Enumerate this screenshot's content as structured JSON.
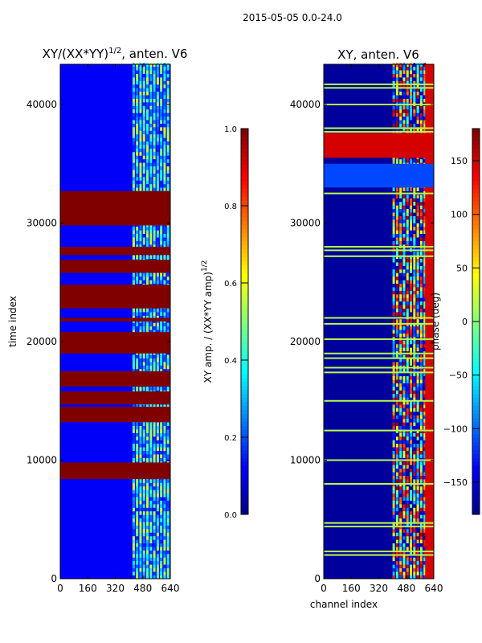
{
  "suptitle": "2015-05-05 0.0-24.0",
  "chart_data": [
    {
      "type": "heatmap",
      "title": "XY/(XX*YY)^{1/2}, anten. V6",
      "title_main": "XY/(XX*YY)",
      "title_sup": "1/2",
      "title_tail": ", anten. V6",
      "xlabel": "",
      "ylabel": "time index",
      "xlim": [
        0,
        640
      ],
      "ylim": [
        0,
        43390
      ],
      "xticks": [
        0,
        160,
        320,
        480,
        640
      ],
      "yticks": [
        0,
        10000,
        20000,
        30000,
        40000
      ],
      "colorbar": {
        "label_main": "XY amp. / (XX*YY amp)",
        "label_sup": "1/2",
        "range": [
          0.0,
          1.0
        ],
        "ticks": [
          "0.0",
          "0.2",
          "0.4",
          "0.6",
          "0.8",
          "1.0"
        ],
        "tick_values": [
          0,
          0.2,
          0.4,
          0.6,
          0.8,
          1.0
        ],
        "colormap": "jet"
      },
      "background_value": 0.12,
      "active_channels": [
        420,
        640
      ],
      "bands": [
        {
          "y0": 8400,
          "y1": 9800,
          "value": 1.0
        },
        {
          "y0": 13200,
          "y1": 14500,
          "value": 1.0
        },
        {
          "y0": 14700,
          "y1": 15800,
          "value": 1.0
        },
        {
          "y0": 16200,
          "y1": 17500,
          "value": 1.0
        },
        {
          "y0": 19000,
          "y1": 20800,
          "value": 1.0
        },
        {
          "y0": 21700,
          "y1": 22000,
          "value": 1.0
        },
        {
          "y0": 22800,
          "y1": 24800,
          "value": 1.0
        },
        {
          "y0": 25800,
          "y1": 26900,
          "value": 1.0
        },
        {
          "y0": 27300,
          "y1": 28000,
          "value": 1.0
        },
        {
          "y0": 29800,
          "y1": 32700,
          "value": 1.0
        }
      ]
    },
    {
      "type": "heatmap",
      "title": "XY, anten. V6",
      "xlabel": "channel index",
      "ylabel": "phase (deg)",
      "xlim": [
        0,
        640
      ],
      "ylim": [
        0,
        43390
      ],
      "xticks": [
        0,
        160,
        320,
        480,
        640
      ],
      "yticks": [
        0,
        10000,
        20000,
        30000,
        40000
      ],
      "colorbar": {
        "label_main": "phase (deg)",
        "range": [
          -180,
          180
        ],
        "ticks": [
          "150",
          "100",
          "50",
          "0",
          "−50",
          "−100",
          "−150"
        ],
        "tick_values": [
          150,
          100,
          50,
          0,
          -50,
          -100,
          -150
        ],
        "colormap": "jet"
      },
      "background_value": -170,
      "active_channels": [
        400,
        590
      ],
      "edge_channels": [
        590,
        640
      ],
      "edge_value": 150,
      "bands": [
        {
          "y0": 35500,
          "y1": 37600,
          "value": 150
        },
        {
          "y0": 33000,
          "y1": 35000,
          "value": -110
        }
      ],
      "lines": [
        2000,
        2300,
        4400,
        4700,
        8000,
        10000,
        12500,
        15000,
        17400,
        17800,
        18600,
        19000,
        20200,
        21500,
        22000,
        27200,
        27700,
        28000,
        32500,
        37700,
        38000,
        40000,
        41400,
        41700
      ],
      "line_value": 20
    }
  ]
}
